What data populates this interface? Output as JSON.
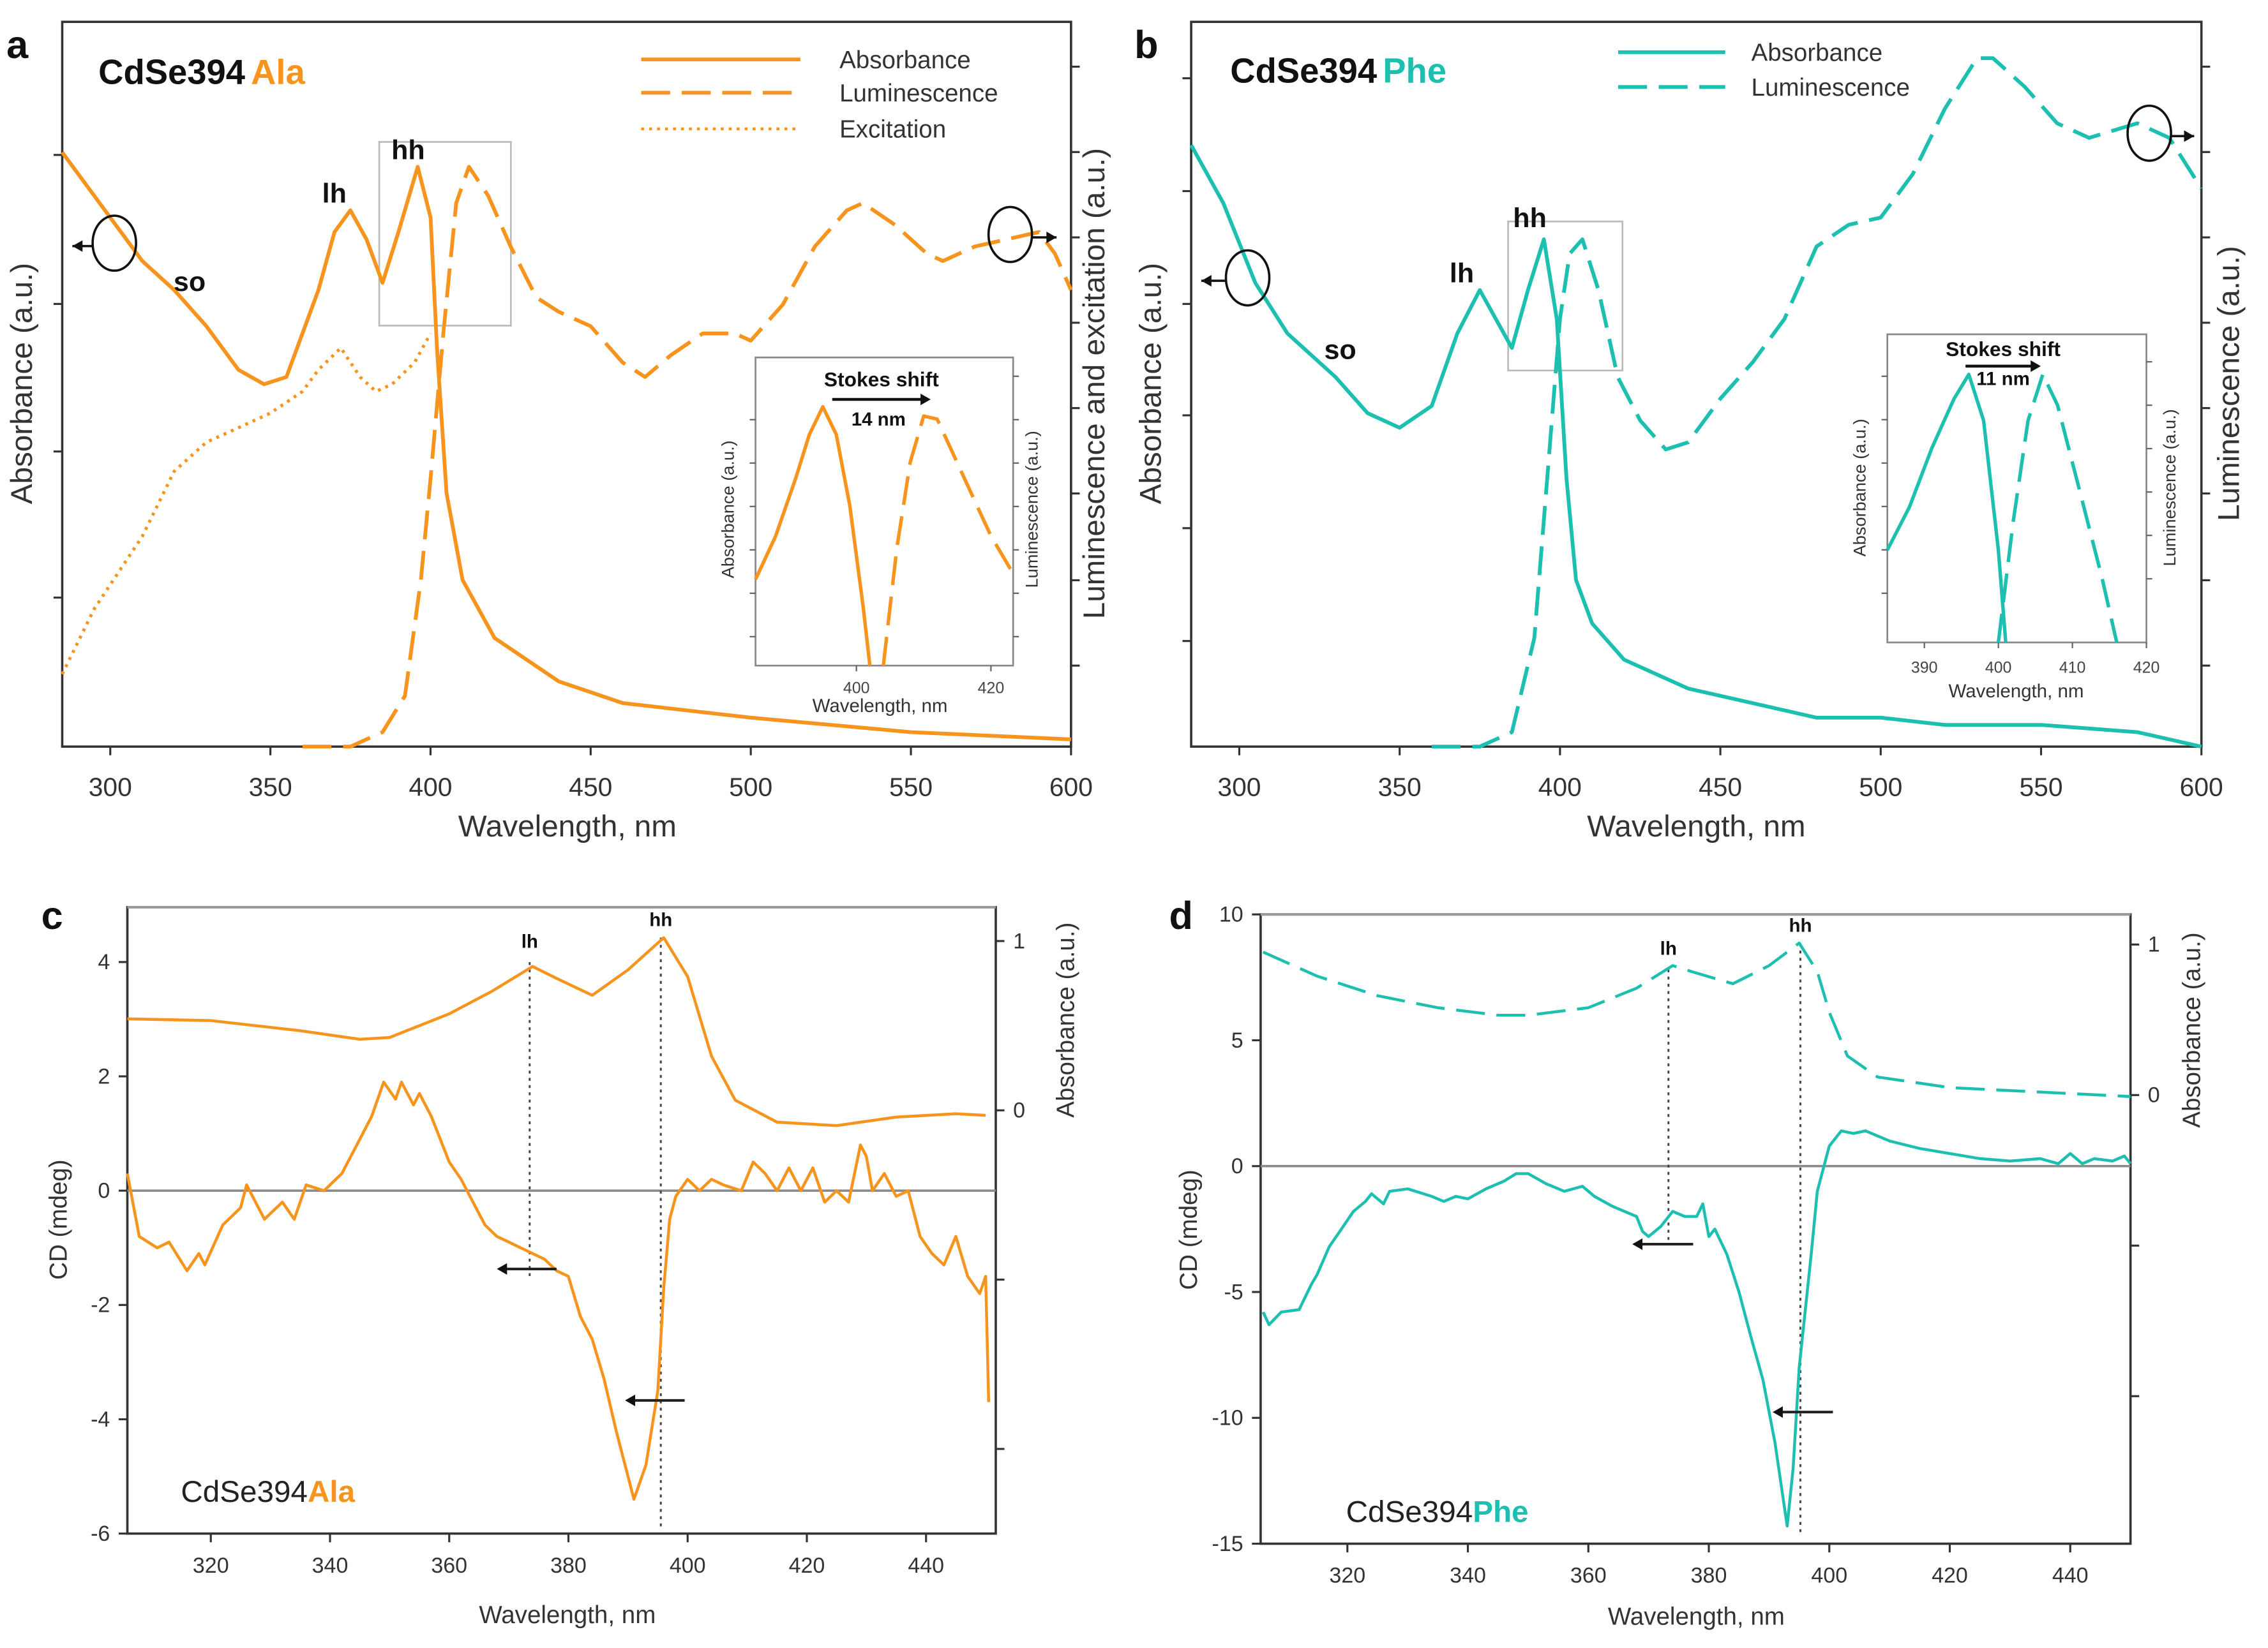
{
  "colors": {
    "ala": "#F7941D",
    "phe": "#1DBFB0",
    "axis": "#333333",
    "zero_line": "#8a8a8a",
    "box": "#bbbbbb"
  },
  "chart_data": [
    {
      "panel": "a",
      "type": "line",
      "sample": "CdSe394",
      "ligand": "Ala",
      "color_key": "ala",
      "xlabel": "Wavelength, nm",
      "ylabel_left": "Absorbance (a.u.)",
      "ylabel_right": "Luminescence and excitation (a.u.)",
      "xlim": [
        285,
        600
      ],
      "ylim": [
        0,
        100
      ],
      "xticks": [
        300,
        350,
        400,
        450,
        500,
        550,
        600
      ],
      "legend": {
        "position": "top-right",
        "entries": [
          {
            "label": "Absorbance",
            "style": "solid"
          },
          {
            "label": "Luminescence",
            "style": "dashed"
          },
          {
            "label": "Excitation",
            "style": "dotted"
          }
        ]
      },
      "annotations": {
        "lh": "lh",
        "hh": "hh",
        "so": "so"
      },
      "series": [
        {
          "name": "Absorbance",
          "style": "solid",
          "axis": "left",
          "x": [
            285,
            300,
            310,
            320,
            330,
            340,
            348,
            355,
            365,
            370,
            375,
            380,
            385,
            390,
            396,
            400,
            402,
            405,
            410,
            420,
            440,
            460,
            500,
            550,
            600
          ],
          "y": [
            82,
            73,
            67,
            63,
            58,
            52,
            50,
            51,
            63,
            71,
            74,
            70,
            64,
            71,
            80,
            73,
            55,
            35,
            23,
            15,
            9,
            6,
            4,
            2,
            1
          ]
        },
        {
          "name": "Luminescence",
          "style": "dashed",
          "axis": "right",
          "x": [
            360,
            375,
            385,
            392,
            397,
            400,
            404,
            408,
            412,
            418,
            425,
            433,
            440,
            450,
            460,
            467,
            475,
            485,
            495,
            500,
            510,
            520,
            530,
            535,
            545,
            555,
            560,
            570,
            580,
            590,
            595,
            600
          ],
          "y": [
            0,
            0,
            2,
            7,
            23,
            37,
            57,
            75,
            80,
            76,
            69,
            62,
            60,
            58,
            53,
            51,
            54,
            57,
            57,
            56,
            61,
            69,
            74,
            75,
            72,
            68,
            67,
            69,
            70,
            71,
            68,
            63
          ]
        },
        {
          "name": "Excitation",
          "style": "dotted",
          "axis": "right",
          "x": [
            285,
            295,
            310,
            320,
            330,
            340,
            350,
            360,
            365,
            372,
            378,
            383,
            388,
            395,
            400
          ],
          "y": [
            10,
            19,
            29,
            38,
            42,
            44,
            46,
            49,
            52,
            55,
            51,
            49,
            50,
            53,
            57
          ]
        }
      ],
      "inset": {
        "title": "Stokes shift",
        "shift_label": "14 nm",
        "xlabel": "Wavelength, nm",
        "ylabel_left": "Absorbance (a.u.)",
        "ylabel_right": "Luminescence (a.u.)",
        "xlim": [
          385,
          423.3
        ],
        "ylim": [
          0,
          100
        ],
        "xticks": [
          400,
          420
        ],
        "series": [
          {
            "style": "solid",
            "x": [
              385,
              388,
              391,
              393,
              395,
              397,
              399,
              401,
              402
            ],
            "y": [
              28,
              42,
              61,
              75,
              84,
              75,
              52,
              19,
              0
            ]
          },
          {
            "style": "dashed",
            "x": [
              404,
              406,
              408,
              410,
              412,
              416,
              420,
              423
            ],
            "y": [
              0,
              38,
              66,
              81,
              80,
              61,
              42,
              31
            ]
          }
        ]
      }
    },
    {
      "panel": "b",
      "type": "line",
      "sample": "CdSe394",
      "ligand": "Phe",
      "color_key": "phe",
      "xlabel": "Wavelength, nm",
      "ylabel_left": "Absorbance (a.u.)",
      "ylabel_right": "Luminescence (a.u.)",
      "xlim": [
        285,
        600
      ],
      "ylim": [
        0,
        100
      ],
      "xticks": [
        300,
        350,
        400,
        450,
        500,
        550,
        600
      ],
      "legend": {
        "position": "top-right",
        "entries": [
          {
            "label": "Absorbance",
            "style": "solid"
          },
          {
            "label": "Luminescence",
            "style": "dashed"
          }
        ]
      },
      "annotations": {
        "lh": "lh",
        "hh": "hh",
        "so": "so"
      },
      "series": [
        {
          "name": "Absorbance",
          "style": "solid",
          "axis": "left",
          "x": [
            285,
            295,
            305,
            315,
            330,
            340,
            350,
            360,
            368,
            375,
            380,
            385,
            390,
            395,
            399,
            402,
            405,
            410,
            420,
            440,
            460,
            480,
            500,
            520,
            550,
            580,
            600
          ],
          "y": [
            83,
            75,
            64,
            57,
            51,
            46,
            44,
            47,
            57,
            63,
            59,
            55,
            63,
            70,
            59,
            37,
            23,
            17,
            12,
            8,
            6,
            4,
            4,
            3,
            3,
            2,
            0
          ]
        },
        {
          "name": "Luminescence",
          "style": "dashed",
          "axis": "right",
          "x": [
            360,
            375,
            385,
            392,
            396,
            400,
            403,
            407,
            412,
            418,
            425,
            433,
            440,
            450,
            460,
            470,
            480,
            490,
            500,
            510,
            520,
            530,
            535,
            545,
            555,
            565,
            580,
            590,
            600
          ],
          "y": [
            0,
            0,
            2,
            15,
            37,
            59,
            68,
            70,
            63,
            51,
            45,
            41,
            42,
            48,
            53,
            59,
            69,
            72,
            73,
            79,
            88,
            95,
            95,
            91,
            86,
            84,
            86,
            84,
            77
          ]
        }
      ],
      "inset": {
        "title": "Stokes shift",
        "shift_label": "11 nm",
        "xlabel": "Wavelength, nm",
        "ylabel_left": "Absorbance (a.u.)",
        "ylabel_right": "Luminescence (a.u.)",
        "xlim": [
          385,
          420
        ],
        "ylim": [
          0,
          100
        ],
        "xticks": [
          390,
          400,
          410,
          420
        ],
        "series": [
          {
            "style": "solid",
            "x": [
              385,
              388,
              391,
              394,
              396,
              398,
              400,
              401
            ],
            "y": [
              30,
              44,
              63,
              79,
              87,
              72,
              30,
              0
            ]
          },
          {
            "style": "dashed",
            "x": [
              400,
              402,
              404,
              406,
              408,
              411,
              414,
              416
            ],
            "y": [
              0,
              39,
              72,
              87,
              77,
              49,
              21,
              0
            ]
          }
        ]
      }
    },
    {
      "panel": "c",
      "type": "line",
      "sample": "CdSe394",
      "ligand": "Ala",
      "color_key": "ala",
      "xlabel": "Wavelength, nm",
      "ylabel_left": "CD (mdeg)",
      "ylabel_right": "Absorbance (a.u.)",
      "xlim": [
        306,
        451.7
      ],
      "ylim": [
        -6,
        4.96
      ],
      "ylim_right": [
        -2.5,
        1.2
      ],
      "xticks": [
        320,
        340,
        360,
        380,
        400,
        420,
        440
      ],
      "yticks": [
        -6,
        -4,
        -2,
        0,
        2,
        4
      ],
      "yticks_right": [
        -2,
        -1,
        0,
        1
      ],
      "yticklabels_right": [
        "",
        "",
        "0",
        "1"
      ],
      "annotations": {
        "lh": "lh",
        "hh": "hh"
      },
      "markers": {
        "lh_nm": 373.5,
        "hh_nm": 395.5
      },
      "arrows": [
        {
          "from": [
            378,
            -1.37
          ],
          "to": [
            368,
            -1.37
          ]
        },
        {
          "from": [
            399.5,
            -3.67
          ],
          "to": [
            389.5,
            -3.67
          ]
        }
      ],
      "series": [
        {
          "style": "solid",
          "axis": "right",
          "x": [
            306,
            320,
            335,
            345,
            350,
            360,
            367,
            374,
            378,
            384,
            390,
            396,
            400,
            404,
            408,
            415,
            425,
            435,
            445,
            450
          ],
          "y": [
            0.54,
            0.53,
            0.47,
            0.42,
            0.43,
            0.57,
            0.7,
            0.85,
            0.78,
            0.68,
            0.83,
            1.02,
            0.79,
            0.32,
            0.06,
            -0.07,
            -0.09,
            -0.04,
            -0.02,
            -0.03
          ]
        },
        {
          "style": "solid",
          "axis": "left",
          "x": [
            306,
            308,
            311,
            313,
            316,
            318,
            319,
            322,
            325,
            326,
            328,
            329,
            332,
            334,
            336,
            339,
            342,
            345,
            347,
            349,
            351,
            352,
            354,
            355,
            357,
            360,
            362,
            364,
            366,
            368,
            370,
            372,
            374,
            376,
            378,
            380,
            382,
            384,
            386,
            388,
            390,
            391,
            393,
            395,
            396,
            397,
            398,
            400,
            402,
            404,
            406,
            409,
            411,
            413,
            415,
            417,
            419,
            421,
            423,
            425,
            427,
            429,
            430,
            431,
            433,
            435,
            437,
            439,
            441,
            443,
            445,
            447,
            449,
            450,
            450.5
          ],
          "y": [
            0.3,
            -0.8,
            -1.0,
            -0.9,
            -1.4,
            -1.1,
            -1.3,
            -0.6,
            -0.3,
            0.1,
            -0.3,
            -0.5,
            -0.2,
            -0.5,
            0.1,
            0.0,
            0.3,
            0.9,
            1.3,
            1.9,
            1.6,
            1.9,
            1.5,
            1.7,
            1.3,
            0.5,
            0.2,
            -0.2,
            -0.6,
            -0.8,
            -0.9,
            -1.0,
            -1.1,
            -1.2,
            -1.4,
            -1.5,
            -2.2,
            -2.6,
            -3.3,
            -4.2,
            -5.0,
            -5.4,
            -4.8,
            -3.5,
            -1.7,
            -0.5,
            -0.1,
            0.2,
            0.0,
            0.2,
            0.1,
            0.0,
            0.5,
            0.3,
            0.0,
            0.4,
            0.0,
            0.4,
            -0.2,
            0.0,
            -0.2,
            0.8,
            0.6,
            0.0,
            0.3,
            -0.1,
            0.0,
            -0.8,
            -1.1,
            -1.3,
            -0.8,
            -1.5,
            -1.8,
            -1.5,
            -3.7
          ]
        }
      ]
    },
    {
      "panel": "d",
      "type": "line",
      "sample": "CdSe394",
      "ligand": "Phe",
      "color_key": "phe",
      "xlabel": "Wavelength, nm",
      "ylabel_left": "CD (mdeg)",
      "ylabel_right": "Absorbance (a.u.)",
      "xlim": [
        305.6,
        450
      ],
      "ylim": [
        -15,
        10
      ],
      "ylim_right": [
        -2.98,
        1.2
      ],
      "xticks": [
        320,
        340,
        360,
        380,
        400,
        420,
        440
      ],
      "yticks": [
        -15,
        -10,
        -5,
        0,
        5,
        10
      ],
      "yticks_right": [
        -2,
        -1,
        0,
        1
      ],
      "yticklabels_right": [
        "",
        "",
        "0",
        "1"
      ],
      "annotations": {
        "lh": "lh",
        "hh": "hh"
      },
      "markers": {
        "lh_nm": 373.3,
        "hh_nm": 395.2
      },
      "arrows": [
        {
          "from": [
            377.4,
            -3.1
          ],
          "to": [
            367.3,
            -3.1
          ]
        },
        {
          "from": [
            400.6,
            -9.77
          ],
          "to": [
            390.6,
            -9.77
          ]
        }
      ],
      "series": [
        {
          "style": "dashed",
          "axis": "right",
          "x": [
            306,
            315,
            325,
            335,
            345,
            350,
            360,
            368,
            374,
            378,
            384,
            390,
            395,
            398,
            400,
            403,
            408,
            420,
            435,
            450
          ],
          "y": [
            0.95,
            0.79,
            0.66,
            0.58,
            0.53,
            0.53,
            0.58,
            0.71,
            0.86,
            0.81,
            0.74,
            0.86,
            1.01,
            0.82,
            0.55,
            0.26,
            0.12,
            0.05,
            0.02,
            -0.01
          ]
        },
        {
          "style": "solid",
          "axis": "left",
          "x": [
            306,
            307,
            309,
            312,
            314,
            315,
            317,
            319,
            321,
            323,
            324,
            326,
            327,
            330,
            334,
            336,
            338,
            340,
            343,
            346,
            348,
            350,
            353,
            356,
            359,
            361,
            364,
            366,
            368,
            369,
            370,
            372,
            374,
            376,
            378,
            379,
            380,
            381,
            383,
            385,
            387,
            389,
            391,
            393,
            394,
            395,
            397,
            398,
            400,
            402,
            404,
            406,
            410,
            415,
            420,
            425,
            430,
            435,
            438,
            440,
            442,
            444,
            447,
            449,
            450
          ],
          "y": [
            -5.8,
            -6.3,
            -5.8,
            -5.7,
            -4.7,
            -4.3,
            -3.2,
            -2.5,
            -1.8,
            -1.4,
            -1.1,
            -1.5,
            -1.0,
            -0.9,
            -1.2,
            -1.4,
            -1.2,
            -1.3,
            -0.9,
            -0.6,
            -0.3,
            -0.3,
            -0.7,
            -1.0,
            -0.8,
            -1.2,
            -1.6,
            -1.8,
            -2.0,
            -2.6,
            -2.8,
            -2.4,
            -1.8,
            -2.0,
            -2.0,
            -1.5,
            -2.8,
            -2.5,
            -3.5,
            -5.0,
            -6.8,
            -8.5,
            -11.0,
            -14.3,
            -12.0,
            -8.0,
            -3.5,
            -1.0,
            0.8,
            1.4,
            1.3,
            1.4,
            1.0,
            0.7,
            0.5,
            0.3,
            0.2,
            0.3,
            0.1,
            0.5,
            0.1,
            0.3,
            0.2,
            0.4,
            0.1
          ]
        }
      ]
    }
  ]
}
